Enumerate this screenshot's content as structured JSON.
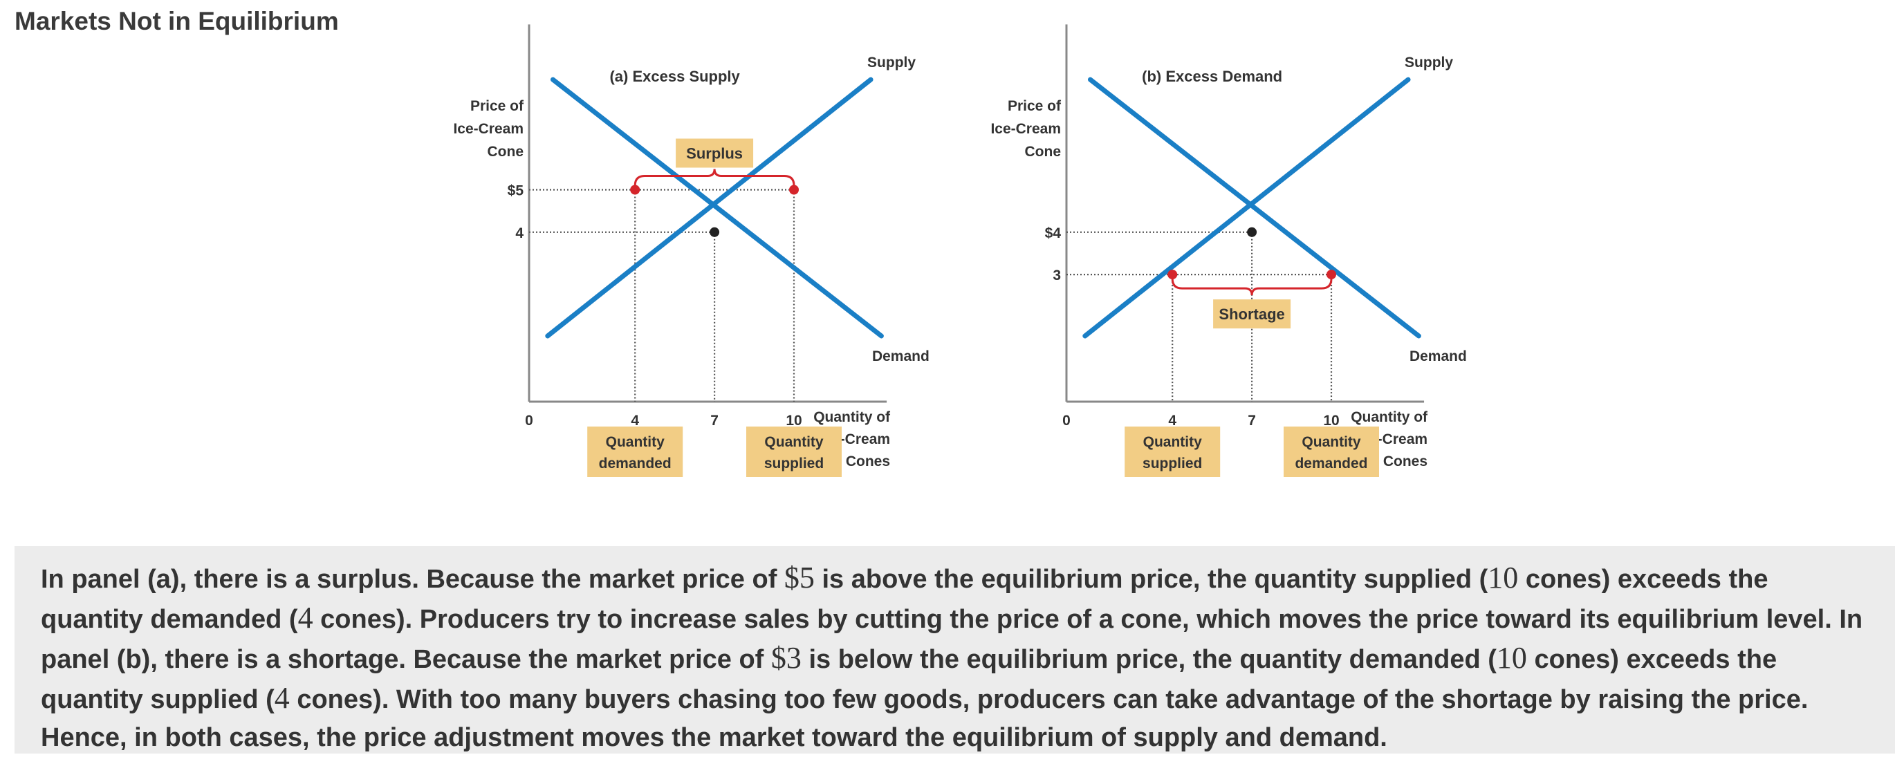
{
  "page_title": "Markets Not in Equilibrium",
  "colors": {
    "curve": "#1a7fc6",
    "highlight_box": "#f2cd85",
    "bracket": "#d5252b",
    "point_red": "#d5252b",
    "point_eq": "#222222",
    "axis": "#888888",
    "dotted": "#555555",
    "caption_bg": "#ececec"
  },
  "chart_data": [
    {
      "type": "line",
      "title": "(a) Excess Supply",
      "ylabel": "Price of Ice-Cream Cone",
      "xlabel": "Quantity of Ice-Cream Cones",
      "x_ticks": [
        {
          "value": 0,
          "label": "0"
        },
        {
          "value": 4,
          "label": "4"
        },
        {
          "value": 7,
          "label": "7"
        },
        {
          "value": 10,
          "label": "10"
        }
      ],
      "y_ticks": [
        {
          "value": 5,
          "label": "$5"
        },
        {
          "value": 4,
          "label": "4"
        }
      ],
      "xlim": [
        0,
        13.5
      ],
      "ylim": [
        0,
        8.9
      ],
      "series": [
        {
          "name": "Supply",
          "x": [
            0.7,
            12.9
          ],
          "y": [
            1.55,
            7.6
          ]
        },
        {
          "name": "Demand",
          "x": [
            0.9,
            13.3
          ],
          "y": [
            7.6,
            1.55
          ]
        }
      ],
      "equilibrium": {
        "x": 7,
        "y": 4
      },
      "market_price": 5,
      "points": [
        {
          "x": 4,
          "y": 5,
          "label": "Quantity demanded"
        },
        {
          "x": 10,
          "y": 5,
          "label": "Quantity supplied"
        }
      ],
      "annotation": {
        "label": "Surplus",
        "from_x": 4,
        "to_x": 10
      }
    },
    {
      "type": "line",
      "title": "(b) Excess Demand",
      "ylabel": "Price of Ice-Cream Cone",
      "xlabel": "Quantity of Ice-Cream Cones",
      "x_ticks": [
        {
          "value": 0,
          "label": "0"
        },
        {
          "value": 4,
          "label": "4"
        },
        {
          "value": 7,
          "label": "7"
        },
        {
          "value": 10,
          "label": "10"
        }
      ],
      "y_ticks": [
        {
          "value": 4,
          "label": "$4"
        },
        {
          "value": 3,
          "label": "3"
        }
      ],
      "xlim": [
        0,
        13.5
      ],
      "ylim": [
        0,
        8.9
      ],
      "series": [
        {
          "name": "Supply",
          "x": [
            0.7,
            12.9
          ],
          "y": [
            1.55,
            7.6
          ]
        },
        {
          "name": "Demand",
          "x": [
            0.9,
            13.3
          ],
          "y": [
            7.6,
            1.55
          ]
        }
      ],
      "equilibrium": {
        "x": 7,
        "y": 4
      },
      "market_price": 3,
      "points": [
        {
          "x": 4,
          "y": 3,
          "label": "Quantity supplied"
        },
        {
          "x": 10,
          "y": 3,
          "label": "Quantity demanded"
        }
      ],
      "annotation": {
        "label": "Shortage",
        "from_x": 4,
        "to_x": 10
      }
    }
  ],
  "caption": {
    "p1": "In panel (a), there is a surplus. Because the market price of ",
    "n1": "$5",
    "p2": " is above the equilibrium price, the quantity supplied (",
    "n2": "10",
    "p3": " cones) exceeds the quantity demanded (",
    "n3": "4",
    "p4": " cones). Producers try to increase sales by cutting the price of a cone, which moves the price toward its equilibrium level. In panel (b), there is a shortage. Because the market price of ",
    "n4": "$3",
    "p5": " is below the equilibrium price, the quantity demanded (",
    "n5": "10",
    "p6": " cones) exceeds the quantity supplied (",
    "n6": "4",
    "p7": " cones). With too many buyers chasing too few goods, producers can take advantage of the shortage by raising the price. Hence, in both cases, the price adjustment moves the market toward the equilibrium of supply and demand."
  }
}
